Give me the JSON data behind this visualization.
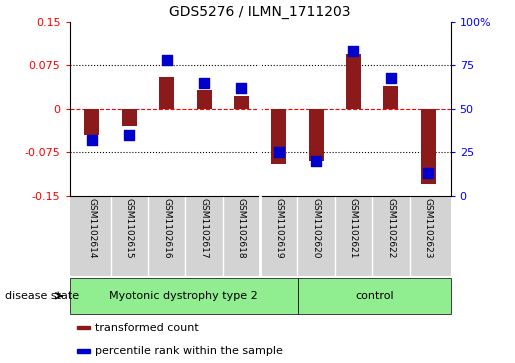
{
  "title": "GDS5276 / ILMN_1711203",
  "samples": [
    "GSM1102614",
    "GSM1102615",
    "GSM1102616",
    "GSM1102617",
    "GSM1102618",
    "GSM1102619",
    "GSM1102620",
    "GSM1102621",
    "GSM1102622",
    "GSM1102623"
  ],
  "transformed_count": [
    -0.045,
    -0.03,
    0.055,
    0.033,
    0.022,
    -0.095,
    -0.09,
    0.095,
    0.04,
    -0.13
  ],
  "percentile_rank": [
    32,
    35,
    78,
    65,
    62,
    25,
    20,
    83,
    68,
    13
  ],
  "groups": [
    {
      "label": "Myotonic dystrophy type 2",
      "n_samples": 6,
      "color": "#90EE90"
    },
    {
      "label": "control",
      "n_samples": 4,
      "color": "#90EE90"
    }
  ],
  "bar_color": "#8B1A1A",
  "dot_color": "#0000CC",
  "ylim_left": [
    -0.15,
    0.15
  ],
  "ylim_right": [
    0,
    100
  ],
  "yticks_left": [
    -0.15,
    -0.075,
    0,
    0.075,
    0.15
  ],
  "yticks_right": [
    0,
    25,
    50,
    75,
    100
  ],
  "ytick_labels_left": [
    "-0.15",
    "-0.075",
    "0",
    "0.075",
    "0.15"
  ],
  "ytick_labels_right": [
    "0",
    "25",
    "50",
    "75",
    "100%"
  ],
  "hlines_dotted": [
    -0.075,
    0.075
  ],
  "hline_red_dashed": 0,
  "disease_state_label": "disease state",
  "legend_items": [
    {
      "color": "#8B1A1A",
      "label": "transformed count"
    },
    {
      "color": "#0000CC",
      "label": "percentile rank within the sample"
    }
  ],
  "bg_color": "#ffffff",
  "label_area_color": "#d3d3d3",
  "group_separator_after": 5
}
